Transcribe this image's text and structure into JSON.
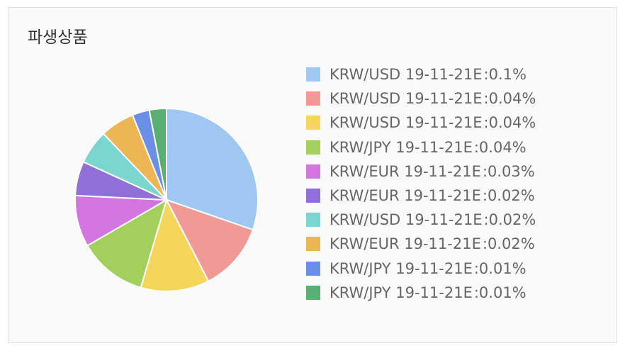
{
  "card": {
    "title": "파생상품"
  },
  "chart_data": {
    "type": "pie",
    "title": "",
    "legend_position": "right",
    "slices": [
      {
        "label": "KRW/USD 19-11-21E",
        "value": 0.1,
        "display": "0.1%",
        "color": "#9ec8f2"
      },
      {
        "label": "KRW/USD 19-11-21E",
        "value": 0.04,
        "display": "0.04%",
        "color": "#f09995"
      },
      {
        "label": "KRW/USD 19-11-21E",
        "value": 0.04,
        "display": "0.04%",
        "color": "#f5d55a"
      },
      {
        "label": "KRW/JPY 19-11-21E",
        "value": 0.04,
        "display": "0.04%",
        "color": "#a3cf5c"
      },
      {
        "label": "KRW/EUR 19-11-21E",
        "value": 0.03,
        "display": "0.03%",
        "color": "#d376e0"
      },
      {
        "label": "KRW/EUR 19-11-21E",
        "value": 0.02,
        "display": "0.02%",
        "color": "#8f70d8"
      },
      {
        "label": "KRW/USD 19-11-21E",
        "value": 0.02,
        "display": "0.02%",
        "color": "#7ad6cf"
      },
      {
        "label": "KRW/EUR 19-11-21E",
        "value": 0.02,
        "display": "0.02%",
        "color": "#edb655"
      },
      {
        "label": "KRW/JPY 19-11-21E",
        "value": 0.01,
        "display": "0.01%",
        "color": "#6b8fe6"
      },
      {
        "label": "KRW/JPY 19-11-21E",
        "value": 0.01,
        "display": "0.01%",
        "color": "#5aaf72"
      }
    ]
  }
}
